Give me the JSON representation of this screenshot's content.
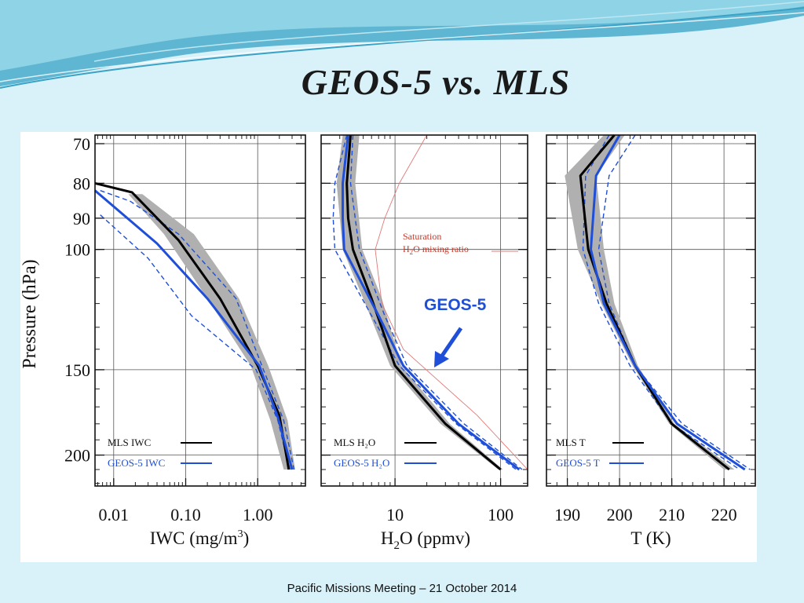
{
  "slide": {
    "title": "GEOS-5 vs. MLS",
    "footer": "Pacific Missions Meeting – 21 October 2014"
  },
  "colors": {
    "mls": "#000000",
    "geos5": "#1f4fd8",
    "envelope": "#b0b0b0",
    "saturation": "#e07a7a",
    "background": "#d9f1f8",
    "plot_background": "#ffffff",
    "banner": "#7cc7df"
  },
  "chart_data": [
    {
      "type": "line",
      "yscale": "log",
      "xscale": "log",
      "ylabel": "Pressure (hPa)",
      "xlabel_html": "IWC (mg/m³)",
      "xlim": [
        0.0055,
        4.6
      ],
      "ylim": [
        68,
        222
      ],
      "xticks": [
        0.01,
        0.1,
        1
      ],
      "xtick_labels": [
        "0.01",
        "0.10",
        "1.00"
      ],
      "yticks": [
        70,
        80,
        90,
        100,
        150,
        200
      ],
      "ytick_labels": [
        "70",
        "80",
        "90",
        "100",
        "150",
        "200"
      ],
      "grid": true,
      "legend_position": "bottom-left",
      "series": [
        {
          "name": "MLS IWC",
          "role": "mls",
          "x": [
            0.0055,
            0.018,
            0.08,
            0.3,
            1.0,
            2.0,
            2.7
          ],
          "y": [
            80,
            82.5,
            97,
            118,
            148,
            175,
            210
          ]
        },
        {
          "name": "GEOS-5 IWC",
          "role": "geos",
          "x": [
            0.0055,
            0.04,
            0.2,
            1.05,
            1.9,
            3.0
          ],
          "y": [
            82,
            98,
            118,
            148,
            176,
            210
          ]
        },
        {
          "role": "geos_dash",
          "x": [
            0.0065,
            0.017,
            0.08,
            0.5,
            1.2,
            2.3,
            3.2
          ],
          "y": [
            82,
            85,
            95,
            118,
            150,
            178,
            210
          ]
        },
        {
          "role": "geos_dash",
          "x": [
            0.0065,
            0.03,
            0.12,
            0.95,
            1.9,
            2.8
          ],
          "y": [
            89,
            103,
            125,
            150,
            178,
            210
          ]
        }
      ],
      "envelope": {
        "x_lo": [
          0.016,
          0.05,
          0.2,
          0.8,
          1.5,
          2.3
        ],
        "x_hi": [
          0.025,
          0.13,
          0.55,
          1.4,
          2.6,
          3.3
        ],
        "y": [
          83,
          95,
          118,
          148,
          178,
          210
        ]
      }
    },
    {
      "type": "line",
      "yscale": "log",
      "xscale": "log",
      "xlabel_html": "H₂O (ppmv)",
      "xlim": [
        2,
        180
      ],
      "ylim": [
        68,
        222
      ],
      "xticks": [
        10,
        100
      ],
      "xtick_labels": [
        "10",
        "100"
      ],
      "grid": true,
      "legend_position": "bottom-left",
      "annotations": {
        "saturation_line1": "Saturation",
        "saturation_line2": "H₂O mixing ratio",
        "arrow_label": "GEOS-5"
      },
      "series": [
        {
          "name": "MLS H₂O",
          "role": "mls",
          "x": [
            3.8,
            3.5,
            3.6,
            4.0,
            6.0,
            10.0,
            30,
            100
          ],
          "y": [
            68,
            80,
            90,
            100,
            118,
            148,
            180,
            210
          ]
        },
        {
          "name": "GEOS-5 H₂O",
          "role": "geos",
          "x": [
            3.6,
            3.2,
            3.2,
            3.3,
            7.0,
            12.0,
            40,
            150
          ],
          "y": [
            68,
            80,
            90,
            100,
            125,
            148,
            180,
            210
          ]
        },
        {
          "role": "geos_dash",
          "x": [
            3.5,
            2.7,
            2.6,
            2.7,
            6.0,
            11.0,
            38,
            140
          ],
          "y": [
            68,
            80,
            90,
            100,
            125,
            148,
            180,
            210
          ]
        },
        {
          "role": "geos_dash",
          "x": [
            4.0,
            3.8,
            4.2,
            4.6,
            8.0,
            13.0,
            45,
            160
          ],
          "y": [
            68,
            80,
            90,
            100,
            125,
            148,
            180,
            210
          ]
        },
        {
          "name": "Saturation H₂O mixing ratio",
          "role": "saturation",
          "x": [
            20,
            11,
            8,
            6.5,
            7.5,
            12,
            60,
            180
          ],
          "y": [
            68,
            80,
            90,
            100,
            120,
            140,
            175,
            210
          ]
        }
      ],
      "envelope": {
        "x_lo": [
          3.2,
          2.8,
          3.2,
          5.0,
          9.0,
          27,
          95
        ],
        "x_hi": [
          4.6,
          4.2,
          4.9,
          7.5,
          11.5,
          33,
          105
        ],
        "y": [
          68,
          80,
          100,
          118,
          148,
          180,
          210
        ]
      }
    },
    {
      "type": "line",
      "yscale": "log",
      "xlabel": "T (K)",
      "xlim": [
        186,
        226
      ],
      "ylim": [
        68,
        222
      ],
      "xticks": [
        190,
        200,
        210,
        220
      ],
      "xtick_labels": [
        "190",
        "200",
        "210",
        "220"
      ],
      "grid": true,
      "legend_position": "bottom-left",
      "series": [
        {
          "name": "MLS T",
          "role": "mls",
          "x": [
            199,
            192.5,
            194,
            197.5,
            203,
            210,
            221
          ],
          "y": [
            68,
            78,
            100,
            120,
            148,
            180,
            210
          ]
        },
        {
          "name": "GEOS-5 T",
          "role": "geos",
          "x": [
            200,
            195.5,
            194.5,
            197,
            203,
            211,
            224
          ],
          "y": [
            68,
            78,
            100,
            120,
            148,
            180,
            210
          ]
        },
        {
          "role": "geos_dash",
          "x": [
            203,
            198,
            196,
            198,
            203,
            212,
            225
          ],
          "y": [
            68,
            78,
            100,
            120,
            148,
            180,
            210
          ]
        },
        {
          "role": "geos_dash",
          "x": [
            198,
            193.5,
            193.0,
            196,
            202,
            210,
            223
          ],
          "y": [
            68,
            78,
            100,
            120,
            148,
            180,
            210
          ]
        }
      ],
      "envelope": {
        "x_lo": [
          197,
          189.5,
          192,
          196.5,
          202.5,
          209.5,
          220
        ],
        "x_hi": [
          201,
          195.5,
          197,
          199,
          203.5,
          210.5,
          222
        ],
        "y": [
          68,
          78,
          100,
          120,
          148,
          180,
          210
        ]
      }
    }
  ]
}
